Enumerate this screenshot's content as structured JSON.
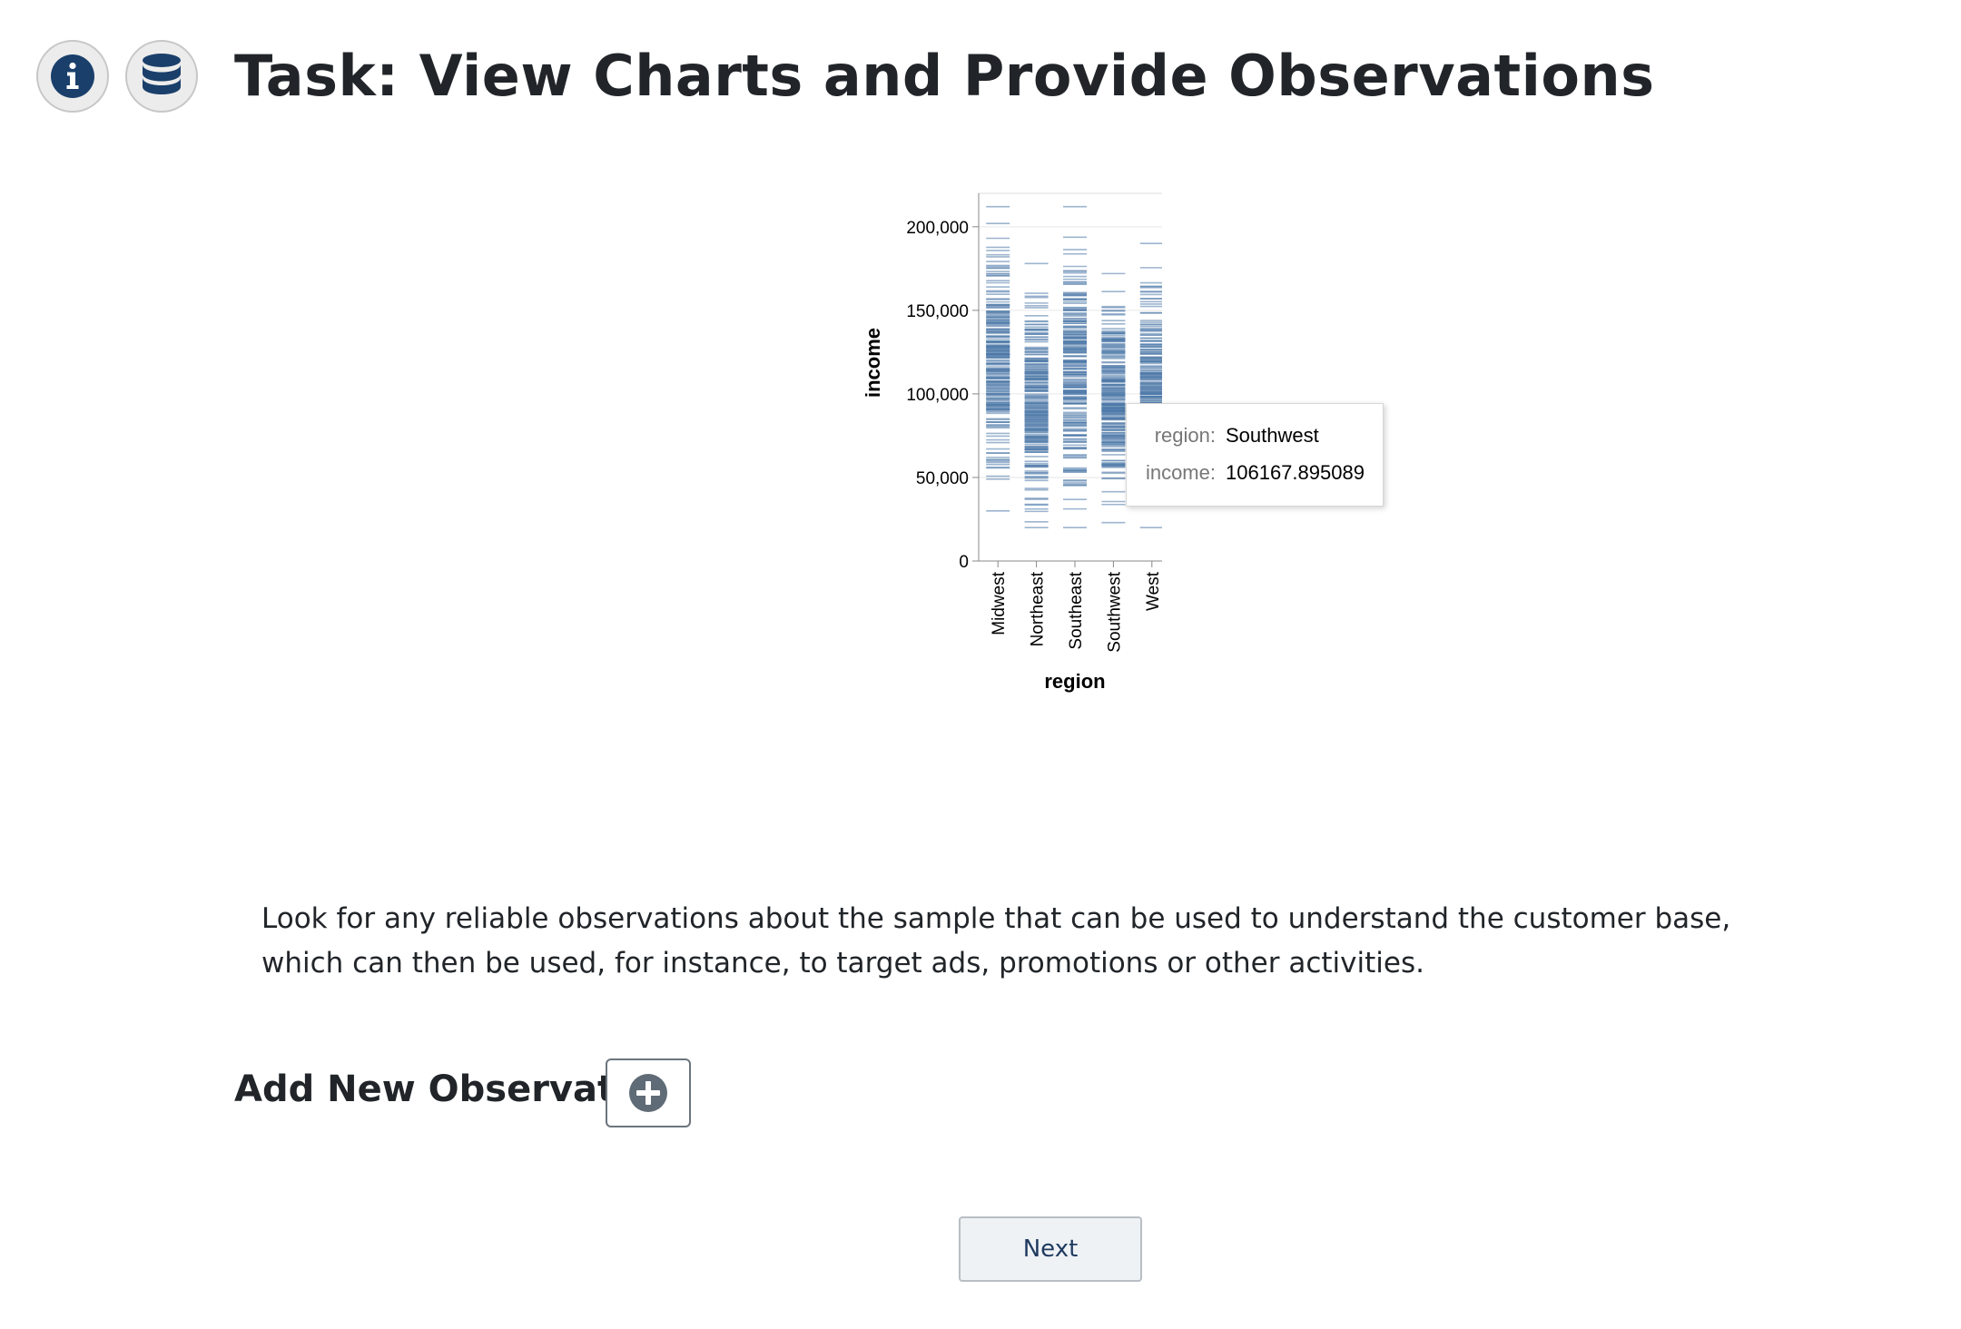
{
  "header": {
    "title": "Task: View Charts and Provide Observations",
    "info_icon": "info-icon",
    "data_icon": "database-icon",
    "icon_color": "#1a3f6b"
  },
  "chart_data": {
    "type": "strip",
    "xlabel": "region",
    "ylabel": "income",
    "ylim": [
      0,
      220000
    ],
    "yticks": [
      0,
      50000,
      100000,
      150000,
      200000
    ],
    "ytick_labels": [
      "0",
      "50,000",
      "100,000",
      "150,000",
      "200,000"
    ],
    "categories": [
      "Midwest",
      "Northeast",
      "Southeast",
      "Southwest",
      "West"
    ],
    "mark_color": "#4c78a8",
    "ranges": [
      {
        "region": "Midwest",
        "min": 30000,
        "max": 212000
      },
      {
        "region": "Northeast",
        "min": 20000,
        "max": 178000
      },
      {
        "region": "Southeast",
        "min": 20000,
        "max": 212000
      },
      {
        "region": "Southwest",
        "min": 23000,
        "max": 172000
      },
      {
        "region": "West",
        "min": 20000,
        "max": 190000
      }
    ],
    "tooltip": {
      "region_label": "region:",
      "region_value": "Southwest",
      "income_label": "income:",
      "income_value": "106167.895089"
    }
  },
  "instructions": "Look for any reliable observations about the sample that can be used to understand the customer base, which can then be used, for instance, to target ads, promotions or other activities.",
  "observations": {
    "add_label": "Add New Observation",
    "add_icon": "plus-circle-icon"
  },
  "footer": {
    "next_label": "Next"
  }
}
